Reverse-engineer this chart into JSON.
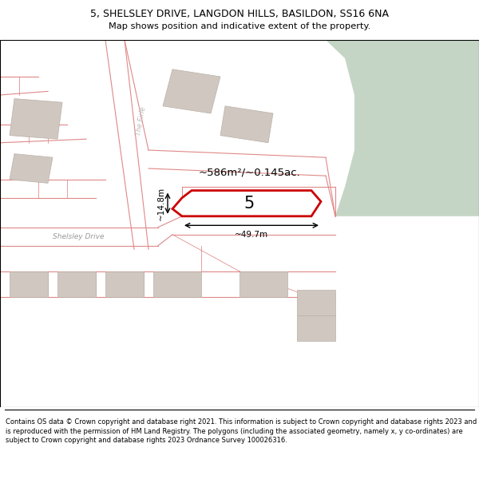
{
  "title_line1": "5, SHELSLEY DRIVE, LANGDON HILLS, BASILDON, SS16 6NA",
  "title_line2": "Map shows position and indicative extent of the property.",
  "footer_text": "Contains OS data © Crown copyright and database right 2021. This information is subject to Crown copyright and database rights 2023 and is reproduced with the permission of HM Land Registry. The polygons (including the associated geometry, namely x, y co-ordinates) are subject to Crown copyright and database rights 2023 Ordnance Survey 100026316.",
  "area_label": "~586m²/~0.145ac.",
  "width_label": "~49.7m",
  "height_label": "~14.8m",
  "plot_number": "5",
  "bg_color": "#f5f0eb",
  "green_color": "#c5d5c5",
  "road_line_color": "#e08888",
  "building_fill": "#d0c8c0",
  "building_outline": "#b8b0a8",
  "plot_fill": "#ffffff",
  "plot_outline": "#cc0000",
  "dim_color": "#000000",
  "street_label_color": "#999999",
  "street_label": "Shelsley Drive",
  "street2_label": "The Firle"
}
